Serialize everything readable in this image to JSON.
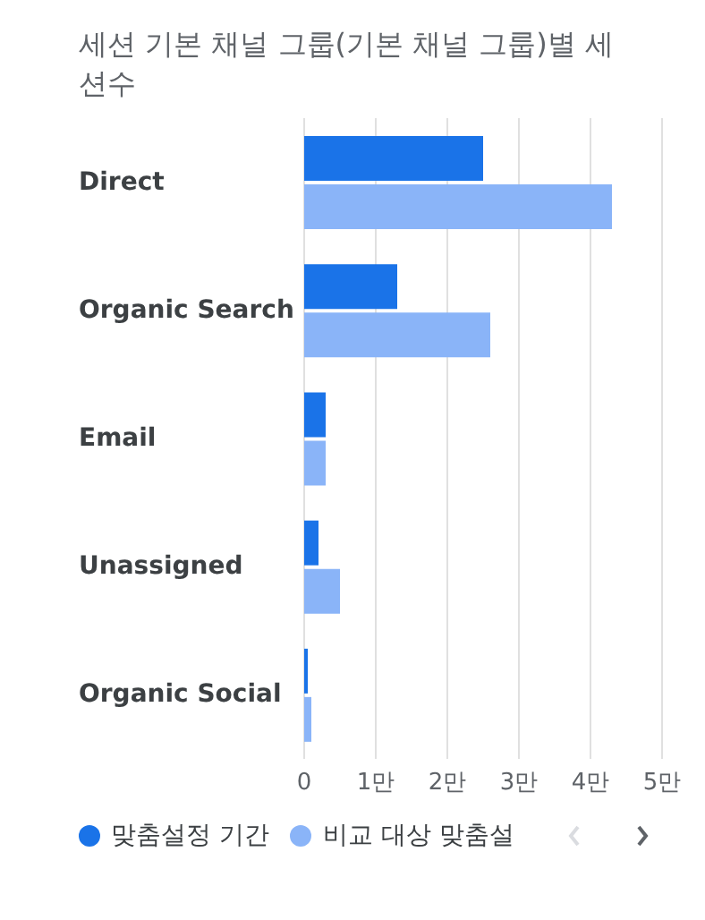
{
  "chart_data": {
    "type": "bar",
    "orientation": "horizontal",
    "title": "세션 기본 채널 그룹(기본 채널 그룹)별 세션수",
    "categories": [
      "Direct",
      "Organic Search",
      "Email",
      "Unassigned",
      "Organic Social"
    ],
    "series": [
      {
        "name": "맞춤설정 기간",
        "color": "#1a73e8",
        "values": [
          2.5,
          1.3,
          0.3,
          0.2,
          0.05
        ]
      },
      {
        "name": "비교 대상 맞춤설",
        "color": "#8ab4f8",
        "values": [
          4.3,
          2.6,
          0.3,
          0.5,
          0.1
        ]
      }
    ],
    "xlim": [
      0,
      5
    ],
    "xticks": [
      0,
      {
        "value": 1,
        "label": "1만"
      },
      {
        "value": 2,
        "label": "2만"
      },
      {
        "value": 3,
        "label": "3만"
      },
      {
        "value": 4,
        "label": "4만"
      },
      {
        "value": 5,
        "label": "5만"
      }
    ],
    "grid": "x",
    "legend": "bottom"
  }
}
